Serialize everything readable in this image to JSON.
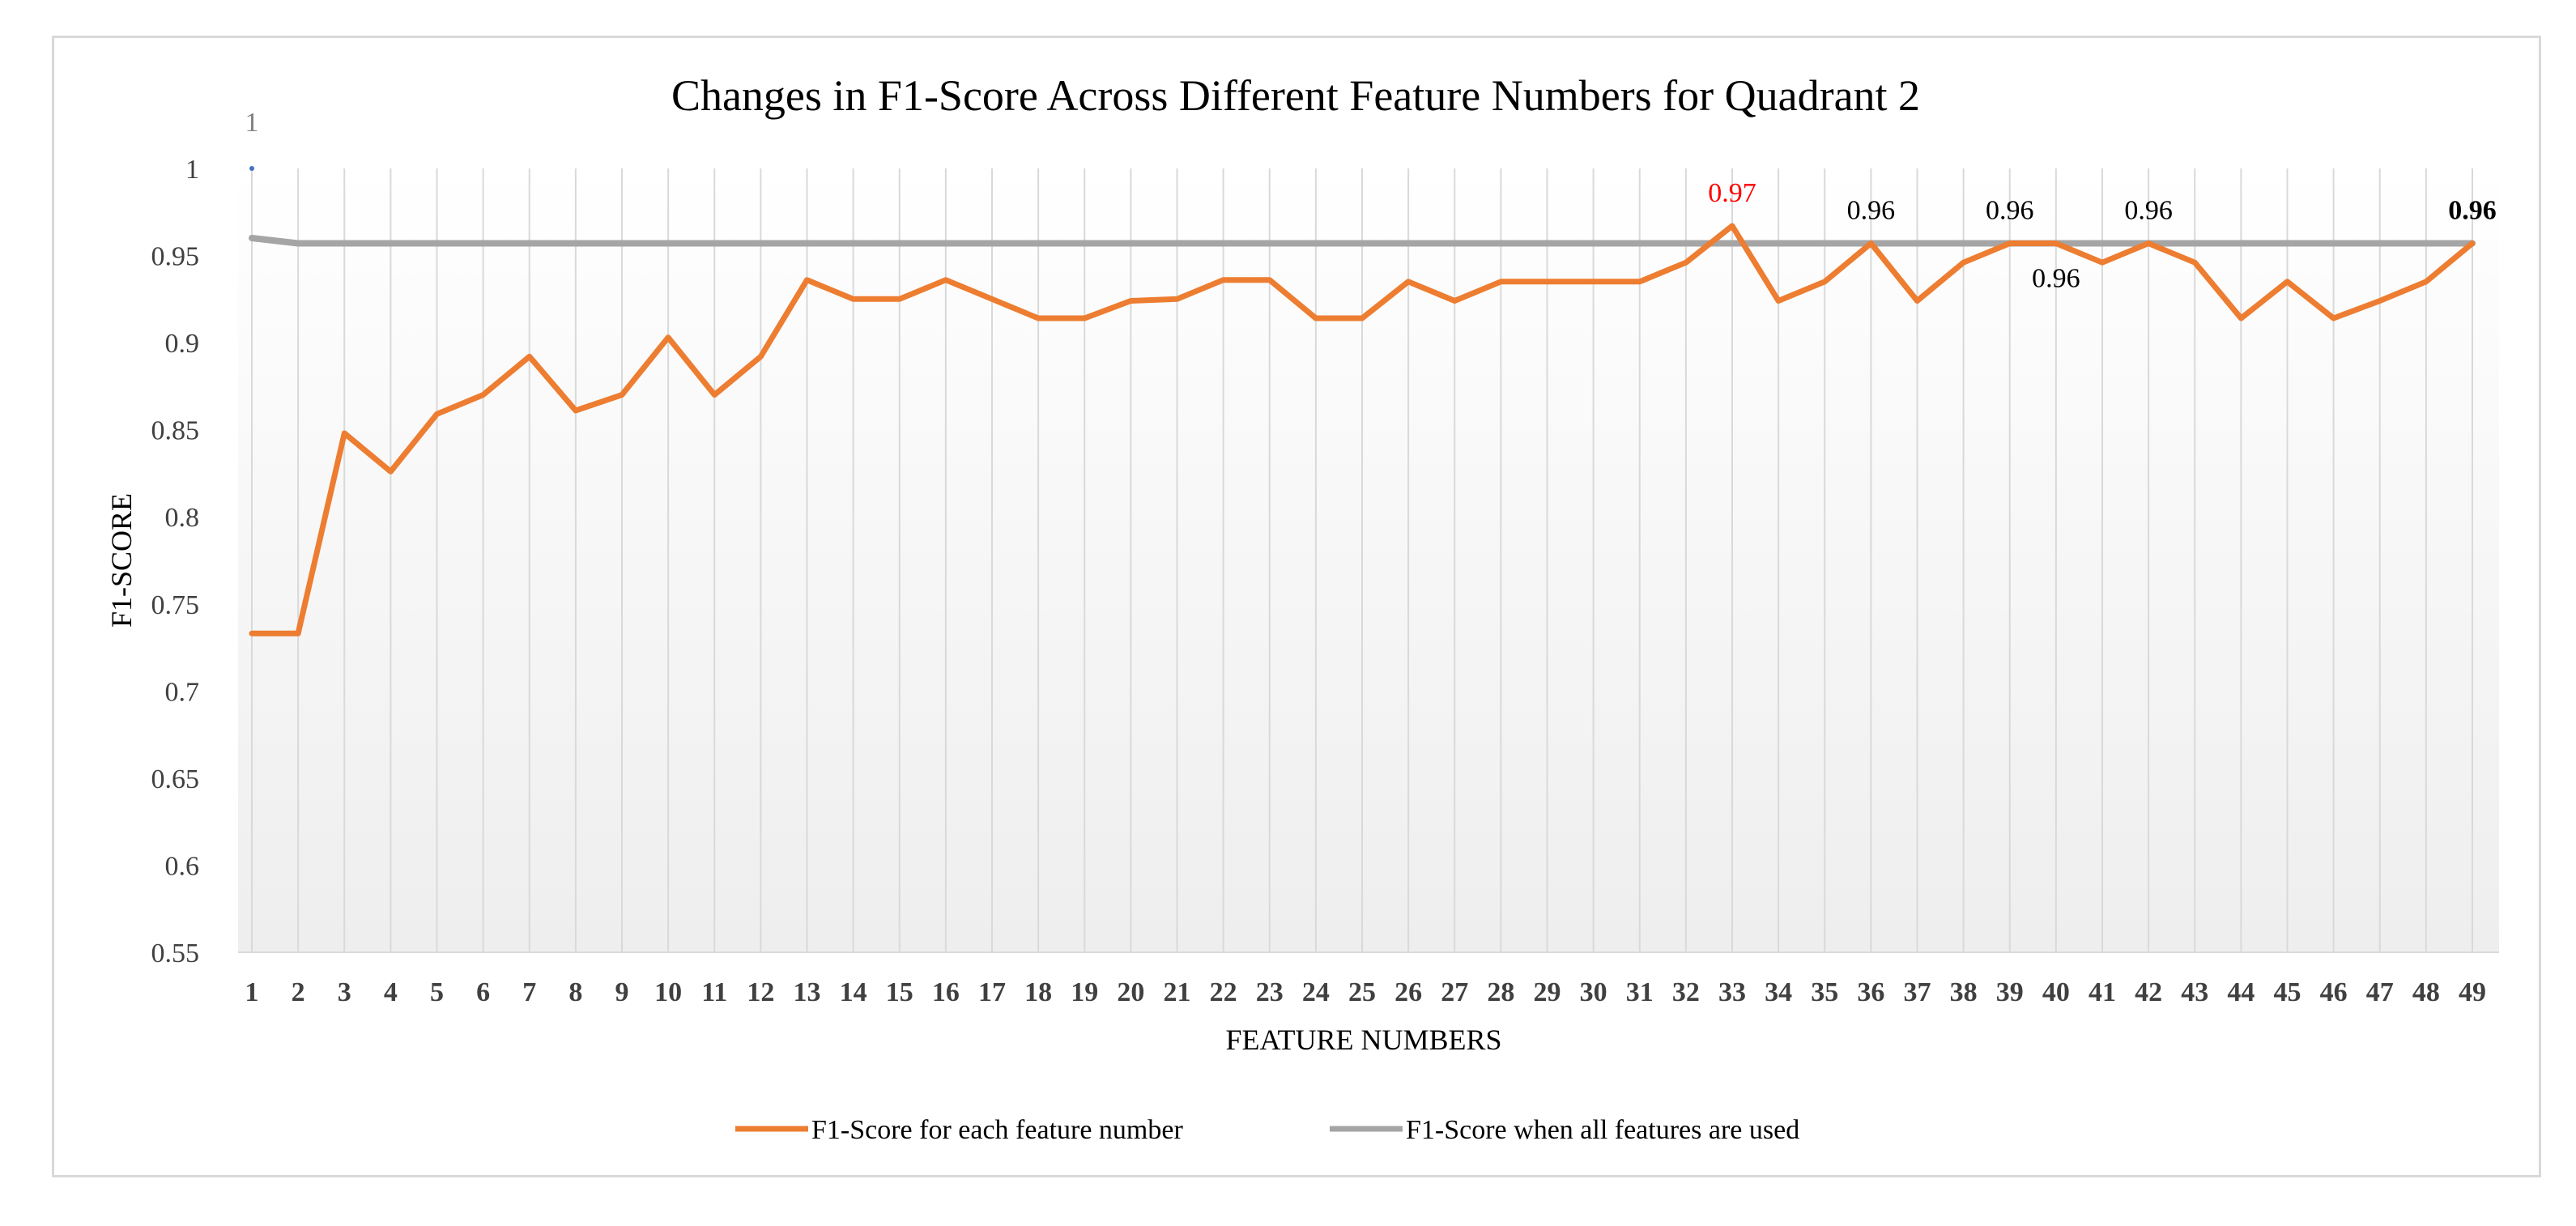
{
  "chart_data": {
    "type": "line",
    "title": "Changes in F1-Score Across Different Feature Numbers for Quadrant 2",
    "xlabel": "FEATURE NUMBERS",
    "ylabel": "F1-SCORE",
    "ylim": [
      0.55,
      1
    ],
    "yticks": [
      "0.55",
      "0.6",
      "0.65",
      "0.7",
      "0.75",
      "0.8",
      "0.85",
      "0.9",
      "0.95",
      "1"
    ],
    "x": [
      1,
      2,
      3,
      4,
      5,
      6,
      7,
      8,
      9,
      10,
      11,
      12,
      13,
      14,
      15,
      16,
      17,
      18,
      19,
      20,
      21,
      22,
      23,
      24,
      25,
      26,
      27,
      28,
      29,
      30,
      31,
      32,
      33,
      34,
      35,
      36,
      37,
      38,
      39,
      40,
      41,
      42,
      43,
      44,
      45,
      46,
      47,
      48,
      49
    ],
    "grid": "vertical",
    "legend_position": "bottom",
    "series": [
      {
        "name": "F1-Score for each feature number",
        "color": "#ed7d31",
        "values": [
          0.733,
          0.733,
          0.848,
          0.826,
          0.859,
          0.87,
          0.892,
          0.861,
          0.87,
          0.903,
          0.87,
          0.892,
          0.936,
          0.925,
          0.925,
          0.936,
          0.925,
          0.914,
          0.914,
          0.924,
          0.925,
          0.936,
          0.936,
          0.914,
          0.914,
          0.935,
          0.924,
          0.935,
          0.935,
          0.935,
          0.935,
          0.946,
          0.967,
          0.924,
          0.935,
          0.957,
          0.924,
          0.946,
          0.957,
          0.957,
          0.946,
          0.957,
          0.946,
          0.914,
          0.935,
          0.914,
          0.924,
          0.935,
          0.957
        ]
      },
      {
        "name": "F1-Score when all features are used",
        "color": "#a5a5a5",
        "values": [
          0.96,
          0.957,
          0.957,
          0.957,
          0.957,
          0.957,
          0.957,
          0.957,
          0.957,
          0.957,
          0.957,
          0.957,
          0.957,
          0.957,
          0.957,
          0.957,
          0.957,
          0.957,
          0.957,
          0.957,
          0.957,
          0.957,
          0.957,
          0.957,
          0.957,
          0.957,
          0.957,
          0.957,
          0.957,
          0.957,
          0.957,
          0.957,
          0.957,
          0.957,
          0.957,
          0.957,
          0.957,
          0.957,
          0.957,
          0.957,
          0.957,
          0.957,
          0.957,
          0.957,
          0.957,
          0.957,
          0.957,
          0.957,
          0.957
        ]
      }
    ],
    "annotations": [
      {
        "x": 1,
        "y": 1.0,
        "text": "1",
        "color": "#808080",
        "marker_color": "#4472c4",
        "pos": "above",
        "bold": false
      },
      {
        "x": 33,
        "y": 0.967,
        "text": "0.97",
        "color": "#ff0000",
        "pos": "above",
        "bold": false
      },
      {
        "x": 36,
        "y": 0.957,
        "text": "0.96",
        "color": "#000000",
        "pos": "above",
        "bold": false
      },
      {
        "x": 39,
        "y": 0.957,
        "text": "0.96",
        "color": "#000000",
        "pos": "above",
        "bold": false
      },
      {
        "x": 40,
        "y": 0.957,
        "text": "0.96",
        "color": "#000000",
        "pos": "below",
        "bold": false
      },
      {
        "x": 42,
        "y": 0.957,
        "text": "0.96",
        "color": "#000000",
        "pos": "above",
        "bold": false
      },
      {
        "x": 49,
        "y": 0.957,
        "text": "0.96",
        "color": "#000000",
        "pos": "above",
        "bold": true
      }
    ]
  }
}
